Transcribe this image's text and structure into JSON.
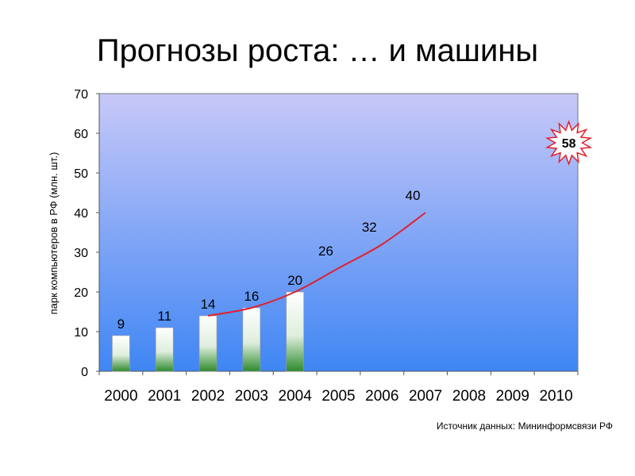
{
  "title": "Прогнозы роста: … и машины",
  "source_note": "Источник данных: Mининформсвязи РФ",
  "chart_data": {
    "type": "bar",
    "ylabel": "парк компьютеров в РФ (млн. шт.)",
    "xlabel": "",
    "ylim": [
      0,
      70
    ],
    "yticks": [
      0,
      10,
      20,
      30,
      40,
      50,
      60,
      70
    ],
    "grid": false,
    "categories": [
      "2000",
      "2001",
      "2002",
      "2003",
      "2004",
      "2005",
      "2006",
      "2007",
      "2008",
      "2009",
      "2010"
    ],
    "bars": [
      {
        "x": "2000",
        "value": 9
      },
      {
        "x": "2001",
        "value": 11
      },
      {
        "x": "2002",
        "value": 14
      },
      {
        "x": "2003",
        "value": 16
      },
      {
        "x": "2004",
        "value": 20
      }
    ],
    "forecast_line": [
      {
        "x": "2002",
        "value": 14
      },
      {
        "x": "2003",
        "value": 16
      },
      {
        "x": "2004",
        "value": 20
      },
      {
        "x": "2005",
        "value": 26
      },
      {
        "x": "2006",
        "value": 32
      },
      {
        "x": "2007",
        "value": 40
      }
    ],
    "forecast_labels": [
      {
        "x": "2005",
        "value": 26,
        "label": "26"
      },
      {
        "x": "2006",
        "value": 32,
        "label": "32"
      },
      {
        "x": "2007",
        "value": 40,
        "label": "40"
      }
    ],
    "callout": {
      "x": "2010",
      "value": 58,
      "label": "58"
    },
    "colors": {
      "line": "#e0202a",
      "bar_top": "#ffffff",
      "bar_bottom": "#2e8b2e",
      "plot_top": "#c8c8f8",
      "plot_bottom": "#3f86f4",
      "burst_fill": "#ffffff",
      "burst_stroke": "#e0202a"
    }
  }
}
